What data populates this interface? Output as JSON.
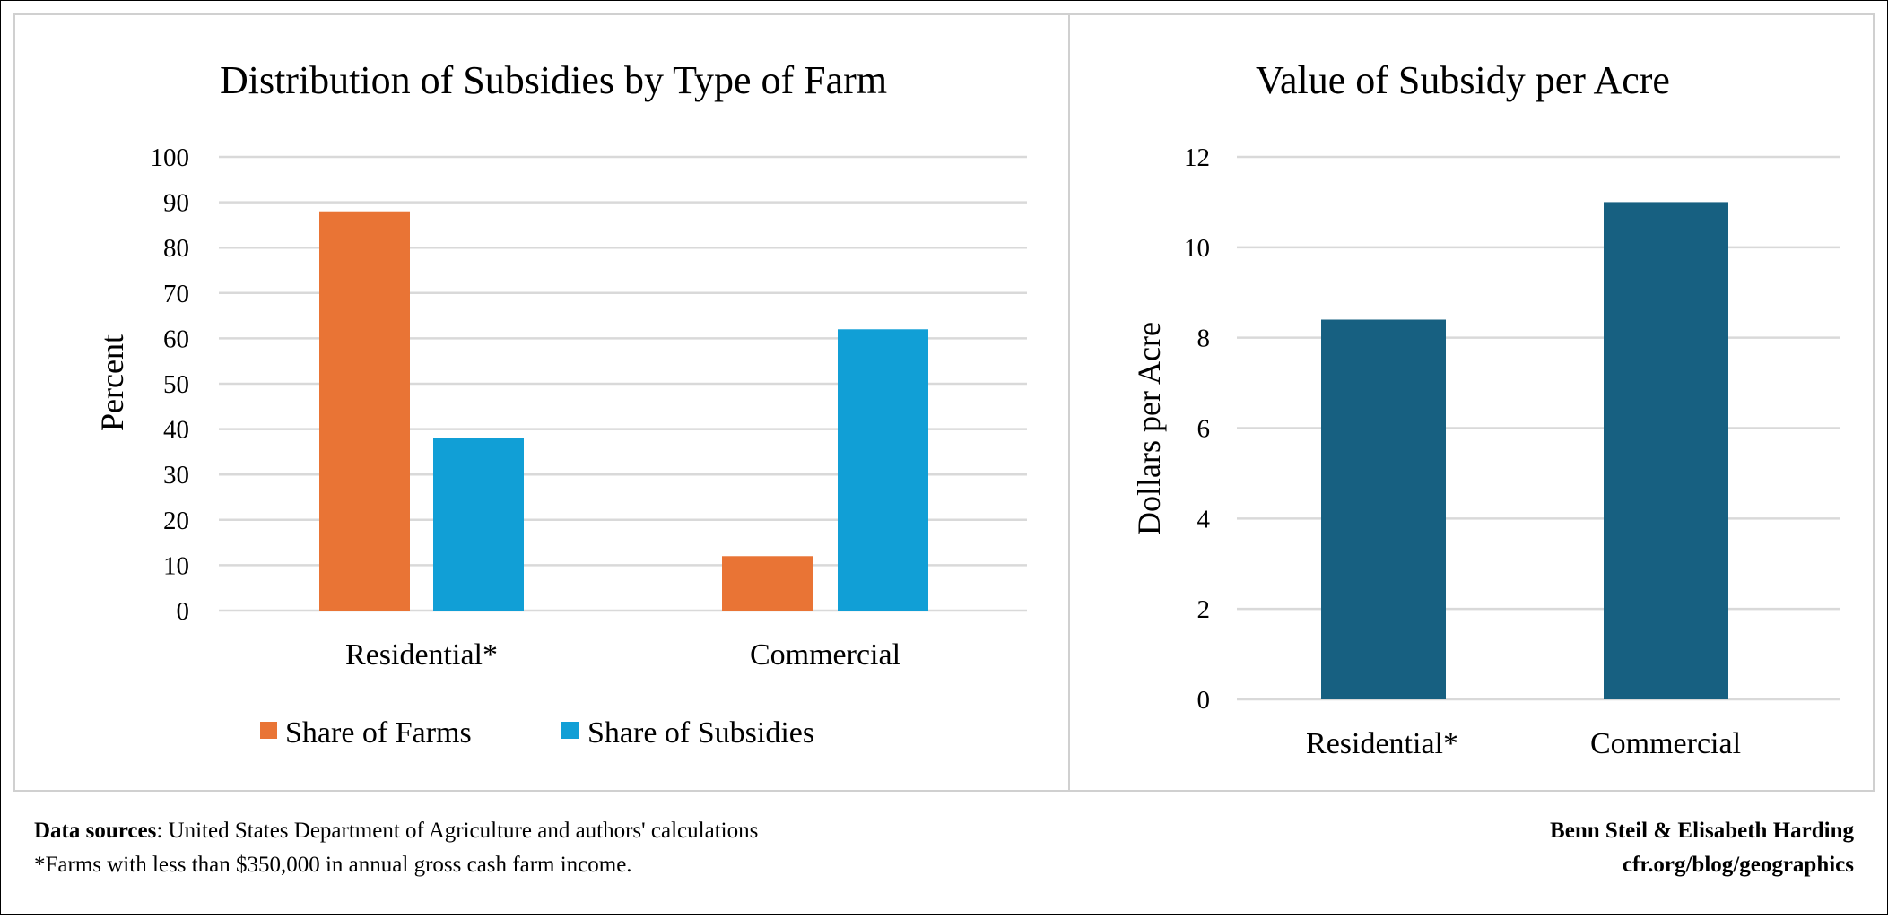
{
  "chart_data": [
    {
      "type": "bar",
      "title": "Distribution of Subsidies by Type of Farm",
      "xlabel": "",
      "ylabel": "Percent",
      "ylim": [
        0,
        100
      ],
      "yticks": [
        "0",
        "10",
        "20",
        "30",
        "40",
        "50",
        "60",
        "70",
        "80",
        "90",
        "100"
      ],
      "categories": [
        "Residential*",
        "Commercial"
      ],
      "series": [
        {
          "name": "Share of Farms",
          "values": [
            88,
            12
          ],
          "color": "#E97435"
        },
        {
          "name": "Share of Subsidies",
          "values": [
            38,
            62
          ],
          "color": "#119FD6"
        }
      ],
      "grid": true,
      "legend": "bottom"
    },
    {
      "type": "bar",
      "title": "Value of Subsidy per Acre",
      "xlabel": "",
      "ylabel": "Dollars per Acre",
      "ylim": [
        0,
        12
      ],
      "yticks": [
        "0",
        "2",
        "4",
        "6",
        "8",
        "10",
        "12"
      ],
      "categories": [
        "Residential*",
        "Commercial"
      ],
      "values": [
        8.4,
        11.0
      ],
      "color": "#176081",
      "grid": true
    }
  ],
  "footer": {
    "sources_label": "Data sources",
    "sources_text": ": United States Department of Agriculture and authors' calculations",
    "footnote": "*Farms with less than $350,000 in annual gross cash farm income.",
    "authors": "Benn Steil & Elisabeth Harding",
    "site": "cfr.org/blog/geographics"
  }
}
